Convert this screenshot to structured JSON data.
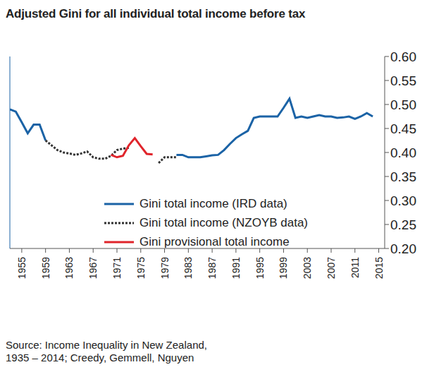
{
  "chart_data": {
    "type": "line",
    "title": "Adjusted Gini for all individual total income before tax",
    "source": [
      "Source: Income Inequality in New Zealand,",
      "1935 – 2014; Creedy, Gemmell, Nguyen"
    ],
    "x": [
      1953,
      1954,
      1955,
      1956,
      1957,
      1958,
      1959,
      1960,
      1961,
      1962,
      1963,
      1964,
      1965,
      1966,
      1967,
      1968,
      1969,
      1970,
      1971,
      1972,
      1973,
      1974,
      1975,
      1976,
      1977,
      1978,
      1979,
      1980,
      1981,
      1982,
      1983,
      1984,
      1985,
      1986,
      1987,
      1988,
      1989,
      1990,
      1991,
      1992,
      1993,
      1994,
      1995,
      1996,
      1997,
      1998,
      1999,
      2000,
      2001,
      2002,
      2003,
      2004,
      2005,
      2006,
      2007,
      2008,
      2009,
      2010,
      2011,
      2012,
      2013,
      2014
    ],
    "series": [
      {
        "name": "Gini total income (IRD data)",
        "color": "#1b63a6",
        "line_style": "solid",
        "values": [
          0.49,
          0.485,
          0.463,
          0.44,
          0.458,
          0.458,
          0.425,
          null,
          null,
          null,
          null,
          null,
          null,
          null,
          null,
          null,
          null,
          null,
          null,
          null,
          null,
          null,
          null,
          null,
          null,
          null,
          null,
          null,
          0.395,
          0.395,
          0.39,
          0.39,
          0.39,
          0.392,
          0.394,
          0.395,
          0.405,
          0.418,
          0.43,
          0.438,
          0.445,
          0.472,
          0.475,
          0.475,
          0.475,
          0.475,
          0.493,
          0.512,
          0.472,
          0.475,
          0.472,
          0.475,
          0.478,
          0.475,
          0.475,
          0.472,
          0.473,
          0.475,
          0.47,
          0.475,
          0.482,
          0.475
        ]
      },
      {
        "name": "Gini total income (NZOYB data)",
        "color": "#333333",
        "line_style": "dotted",
        "values": [
          null,
          null,
          null,
          null,
          null,
          null,
          0.425,
          0.415,
          0.405,
          0.4,
          0.398,
          0.395,
          0.398,
          0.402,
          0.39,
          0.387,
          0.387,
          0.393,
          0.405,
          0.408,
          0.41,
          null,
          null,
          null,
          null,
          0.378,
          0.39,
          0.39,
          0.39,
          null,
          null,
          null,
          null,
          null,
          null,
          null,
          null,
          null,
          null,
          null,
          null,
          null,
          null,
          null,
          null,
          null,
          null,
          null,
          null,
          null,
          null,
          null,
          null,
          null,
          null,
          null,
          null,
          null,
          null,
          null,
          null,
          null
        ]
      },
      {
        "name": "Gini provisional total income",
        "color": "#e0242b",
        "line_style": "solid",
        "values": [
          null,
          null,
          null,
          null,
          null,
          null,
          null,
          null,
          null,
          null,
          null,
          null,
          null,
          null,
          null,
          null,
          null,
          0.395,
          0.39,
          0.393,
          0.415,
          0.43,
          0.413,
          0.397,
          0.396,
          null,
          null,
          null,
          null,
          null,
          null,
          null,
          null,
          null,
          null,
          null,
          null,
          null,
          null,
          null,
          null,
          null,
          null,
          null,
          null,
          null,
          null,
          null,
          null,
          null,
          null,
          null,
          null,
          null,
          null,
          null,
          null,
          null,
          null,
          null,
          null,
          null
        ]
      }
    ],
    "xlim": [
      1953,
      2016
    ],
    "xticks": [
      1955,
      1959,
      1963,
      1967,
      1971,
      1975,
      1979,
      1983,
      1987,
      1991,
      1995,
      1999,
      2003,
      2007,
      2011,
      2015
    ],
    "ylim": [
      0.2,
      0.6
    ],
    "yticks": [
      {
        "value": 0.2,
        "label": "0.20"
      },
      0.25,
      {
        "value": 0.3,
        "label": "0.30"
      },
      0.35,
      {
        "value": 0.4,
        "label": "0.40"
      },
      0.45,
      {
        "value": 0.5,
        "label": "0.50"
      },
      0.55,
      {
        "value": 0.6,
        "label": "0.60"
      }
    ],
    "grid": false,
    "legend": "center",
    "marker": "none"
  }
}
